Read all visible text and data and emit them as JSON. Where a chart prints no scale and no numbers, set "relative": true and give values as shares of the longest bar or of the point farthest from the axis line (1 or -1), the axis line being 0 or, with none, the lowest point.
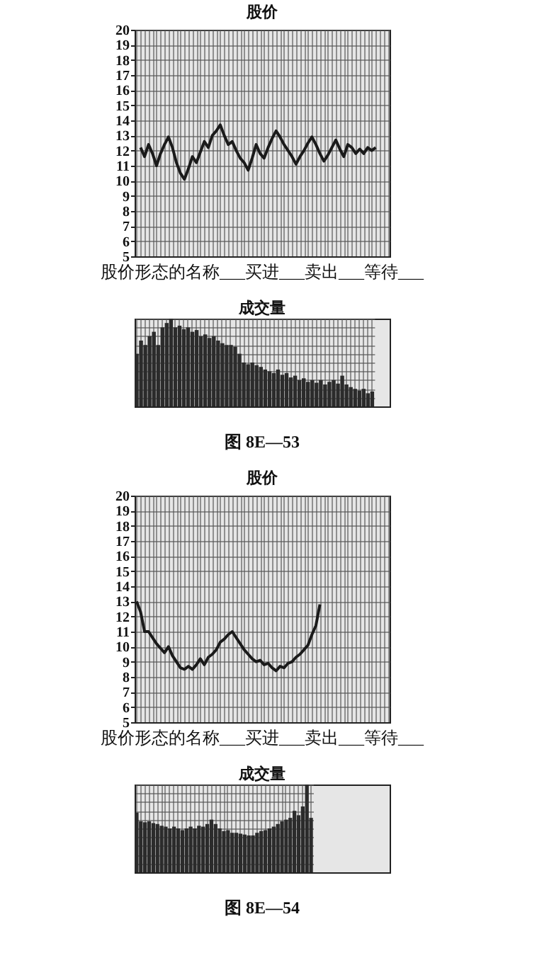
{
  "chart_data": [
    {
      "type": "line",
      "title": "股价",
      "categories": [
        null,
        null,
        null,
        null,
        null,
        null,
        null,
        null,
        null,
        null,
        null,
        null,
        null,
        null,
        null,
        null,
        null,
        null,
        null,
        null,
        null,
        null,
        null,
        null,
        null,
        null,
        null,
        null,
        null,
        null,
        null,
        null,
        null,
        null,
        null,
        null,
        null,
        null,
        null,
        null,
        null,
        null,
        null,
        null,
        null,
        null,
        null,
        null,
        null,
        null,
        null,
        null,
        null,
        null,
        null,
        null,
        null,
        null,
        null,
        null,
        null,
        null,
        null,
        null
      ],
      "values": [
        null,
        12.2,
        11.6,
        12.4,
        11.8,
        11.0,
        11.8,
        12.4,
        12.9,
        12.2,
        11.2,
        10.5,
        10.1,
        10.8,
        11.6,
        11.2,
        11.9,
        12.6,
        12.2,
        13.0,
        13.3,
        13.7,
        13.0,
        12.4,
        12.6,
        12.0,
        11.5,
        11.2,
        10.7,
        11.5,
        12.4,
        11.8,
        11.5,
        12.2,
        12.8,
        13.3,
        12.9,
        12.4,
        12.0,
        11.6,
        11.1,
        11.6,
        12.0,
        12.5,
        12.9,
        12.4,
        11.8,
        11.3,
        11.7,
        12.2,
        12.7,
        12.1,
        11.6,
        12.4,
        12.2,
        11.8,
        12.1,
        11.8,
        12.2,
        12.0,
        12.2,
        null,
        null,
        null
      ],
      "color": "#1a1a1a",
      "ylim": [
        5,
        20
      ],
      "yticks": [
        5,
        6,
        7,
        8,
        9,
        10,
        11,
        12,
        13,
        14,
        15,
        16,
        17,
        18,
        19,
        20
      ],
      "grid": true,
      "tick_labels": "y",
      "annotations": [
        "股价形态的名称___买进___卖出___等待___"
      ]
    },
    {
      "type": "bar",
      "title": "成交量",
      "relative": true,
      "categories": [
        null,
        null,
        null,
        null,
        null,
        null,
        null,
        null,
        null,
        null,
        null,
        null,
        null,
        null,
        null,
        null,
        null,
        null,
        null,
        null,
        null,
        null,
        null,
        null,
        null,
        null,
        null,
        null,
        null,
        null,
        null,
        null,
        null,
        null,
        null,
        null,
        null,
        null,
        null,
        null,
        null,
        null,
        null,
        null,
        null,
        null,
        null,
        null,
        null,
        null,
        null,
        null,
        null,
        null,
        null,
        null
      ],
      "values": [
        0.6,
        0.75,
        0.7,
        0.8,
        0.85,
        0.7,
        0.9,
        0.95,
        1.0,
        0.9,
        0.92,
        0.88,
        0.9,
        0.85,
        0.87,
        0.8,
        0.82,
        0.78,
        0.8,
        0.75,
        0.72,
        0.7,
        0.7,
        0.68,
        0.6,
        0.5,
        0.48,
        0.5,
        0.47,
        0.45,
        0.42,
        0.4,
        0.38,
        0.42,
        0.36,
        0.38,
        0.33,
        0.35,
        0.3,
        0.32,
        0.28,
        0.3,
        0.27,
        0.3,
        0.25,
        0.28,
        0.3,
        0.26,
        0.35,
        0.25,
        0.22,
        0.2,
        0.18,
        0.2,
        0.15,
        0.17
      ],
      "color": "#2b2b2b",
      "grid": true,
      "tick_labels": false,
      "annotations": [
        "图 8E—53"
      ]
    },
    {
      "type": "line",
      "title": "股价",
      "categories": [
        null,
        null,
        null,
        null,
        null,
        null,
        null,
        null,
        null,
        null,
        null,
        null,
        null,
        null,
        null,
        null,
        null,
        null,
        null,
        null,
        null,
        null,
        null,
        null,
        null,
        null,
        null,
        null,
        null,
        null,
        null,
        null,
        null,
        null,
        null,
        null,
        null,
        null,
        null,
        null,
        null,
        null,
        null,
        null,
        null,
        null,
        null,
        null,
        null,
        null,
        null,
        null,
        null,
        null,
        null,
        null,
        null,
        null,
        null,
        null,
        null,
        null,
        null,
        null
      ],
      "values": [
        13.0,
        12.3,
        11.0,
        11.0,
        10.6,
        10.2,
        9.9,
        9.6,
        10.0,
        9.4,
        9.0,
        8.6,
        8.5,
        8.7,
        8.5,
        8.8,
        9.2,
        8.8,
        9.3,
        9.5,
        9.8,
        10.3,
        10.5,
        10.8,
        11.0,
        10.6,
        10.2,
        9.8,
        9.5,
        9.2,
        9.0,
        9.1,
        8.8,
        8.9,
        8.6,
        8.4,
        8.7,
        8.6,
        8.9,
        9.0,
        9.3,
        9.5,
        9.8,
        10.1,
        10.8,
        11.4,
        12.8,
        null,
        null,
        null,
        null,
        null,
        null,
        null,
        null,
        null,
        null,
        null,
        null,
        null,
        null,
        null,
        null,
        null
      ],
      "color": "#1a1a1a",
      "ylim": [
        5,
        20
      ],
      "yticks": [
        5,
        6,
        7,
        8,
        9,
        10,
        11,
        12,
        13,
        14,
        15,
        16,
        17,
        18,
        19,
        20
      ],
      "grid": true,
      "tick_labels": "y",
      "annotations": [
        "股价形态的名称___买进___卖出___等待___"
      ]
    },
    {
      "type": "bar",
      "title": "成交量",
      "relative": true,
      "categories": [
        null,
        null,
        null,
        null,
        null,
        null,
        null,
        null,
        null,
        null,
        null,
        null,
        null,
        null,
        null,
        null,
        null,
        null,
        null,
        null,
        null,
        null,
        null,
        null,
        null,
        null,
        null,
        null,
        null,
        null,
        null,
        null,
        null,
        null,
        null,
        null,
        null,
        null,
        null,
        null,
        null,
        null,
        null
      ],
      "values": [
        0.68,
        0.58,
        0.57,
        0.58,
        0.56,
        0.55,
        0.53,
        0.52,
        0.5,
        0.52,
        0.5,
        0.48,
        0.5,
        0.52,
        0.5,
        0.53,
        0.52,
        0.55,
        0.6,
        0.55,
        0.5,
        0.47,
        0.48,
        0.45,
        0.45,
        0.44,
        0.43,
        0.42,
        0.42,
        0.45,
        0.47,
        0.48,
        0.5,
        0.52,
        0.55,
        0.58,
        0.6,
        0.62,
        0.7,
        0.65,
        0.75,
        1.0,
        0.62
      ],
      "color": "#2b2b2b",
      "grid": true,
      "tick_labels": false,
      "annotations": [
        "图 8E—54"
      ]
    }
  ]
}
